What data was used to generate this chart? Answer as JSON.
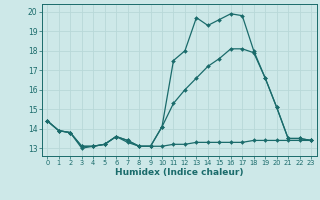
{
  "xlabel": "Humidex (Indice chaleur)",
  "background_color": "#cde8e8",
  "grid_color": "#b8d8d8",
  "line_color": "#1a6b6b",
  "x": [
    0,
    1,
    2,
    3,
    4,
    5,
    6,
    7,
    8,
    9,
    10,
    11,
    12,
    13,
    14,
    15,
    16,
    17,
    18,
    19,
    20,
    21,
    22,
    23
  ],
  "y_top": [
    14.4,
    13.9,
    13.8,
    13.0,
    13.1,
    13.2,
    13.6,
    13.3,
    13.1,
    13.1,
    14.1,
    17.5,
    18.0,
    19.7,
    19.3,
    19.6,
    19.9,
    19.8,
    18.0,
    16.6,
    15.1,
    13.5,
    13.5,
    13.4
  ],
  "y_mid": [
    14.4,
    13.9,
    13.8,
    13.1,
    13.1,
    13.2,
    13.6,
    13.4,
    13.1,
    13.1,
    14.1,
    15.3,
    16.0,
    16.6,
    17.2,
    17.6,
    18.1,
    18.1,
    17.9,
    16.6,
    15.1,
    13.5,
    13.5,
    13.4
  ],
  "y_bot": [
    14.4,
    13.9,
    13.8,
    13.1,
    13.1,
    13.2,
    13.6,
    13.4,
    13.1,
    13.1,
    13.1,
    13.2,
    13.2,
    13.3,
    13.3,
    13.3,
    13.3,
    13.3,
    13.4,
    13.4,
    13.4,
    13.4,
    13.4,
    13.4
  ],
  "ylim": [
    12.6,
    20.4
  ],
  "xlim": [
    -0.5,
    23.5
  ],
  "yticks": [
    13,
    14,
    15,
    16,
    17,
    18,
    19,
    20
  ],
  "xticks": [
    0,
    1,
    2,
    3,
    4,
    5,
    6,
    7,
    8,
    9,
    10,
    11,
    12,
    13,
    14,
    15,
    16,
    17,
    18,
    19,
    20,
    21,
    22,
    23
  ]
}
